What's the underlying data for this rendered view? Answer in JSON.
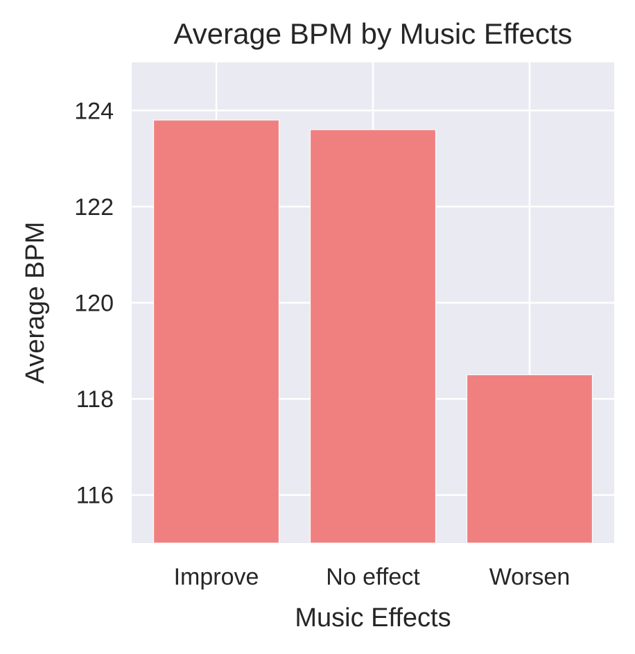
{
  "chart_data": {
    "type": "bar",
    "title": "Average BPM by Music Effects",
    "xlabel": "Music Effects",
    "ylabel": "Average BPM",
    "categories": [
      "Improve",
      "No effect",
      "Worsen"
    ],
    "values": [
      123.8,
      123.6,
      118.5
    ],
    "ylim": [
      115,
      125
    ],
    "yticks": [
      116,
      118,
      120,
      122,
      124
    ],
    "grid": true,
    "legend": "none",
    "colors": {
      "bar": "#f08080",
      "plot_background": "#eaeaf2",
      "grid": "#ffffff",
      "text": "#262626"
    }
  }
}
